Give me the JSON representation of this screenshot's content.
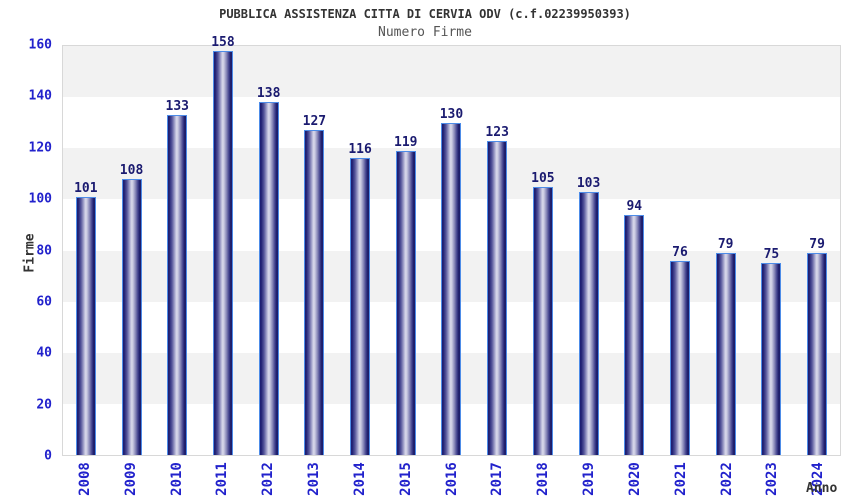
{
  "chart_data": {
    "type": "bar",
    "title": "PUBBLICA ASSISTENZA CITTA DI CERVIA ODV (c.f.02239950393)",
    "subtitle": "Numero Firme",
    "xlabel": "Anno",
    "ylabel": "Firme",
    "categories": [
      "2008",
      "2009",
      "2010",
      "2011",
      "2012",
      "2013",
      "2014",
      "2015",
      "2016",
      "2017",
      "2018",
      "2019",
      "2020",
      "2021",
      "2022",
      "2023",
      "2024"
    ],
    "values": [
      101,
      108,
      133,
      158,
      138,
      127,
      116,
      119,
      130,
      123,
      105,
      103,
      94,
      76,
      79,
      75,
      79
    ],
    "ylim": [
      0,
      160
    ],
    "yticks": [
      0,
      20,
      40,
      60,
      80,
      100,
      120,
      140,
      160
    ],
    "grid": "alternating horizontal bands every 20 units, gray topmost",
    "legend": "none",
    "colors": {
      "bar_dark": "#1b1b6e",
      "bar_light": "#d8d8ea",
      "bar_border": "#4d8ce8",
      "axis_tick_label": "#2222cc",
      "value_label": "#1b1b70",
      "band_gray": "#f2f2f2",
      "band_white": "#ffffff",
      "frame": "#d8d8d8",
      "title": "#333333",
      "subtitle": "#555555"
    }
  }
}
